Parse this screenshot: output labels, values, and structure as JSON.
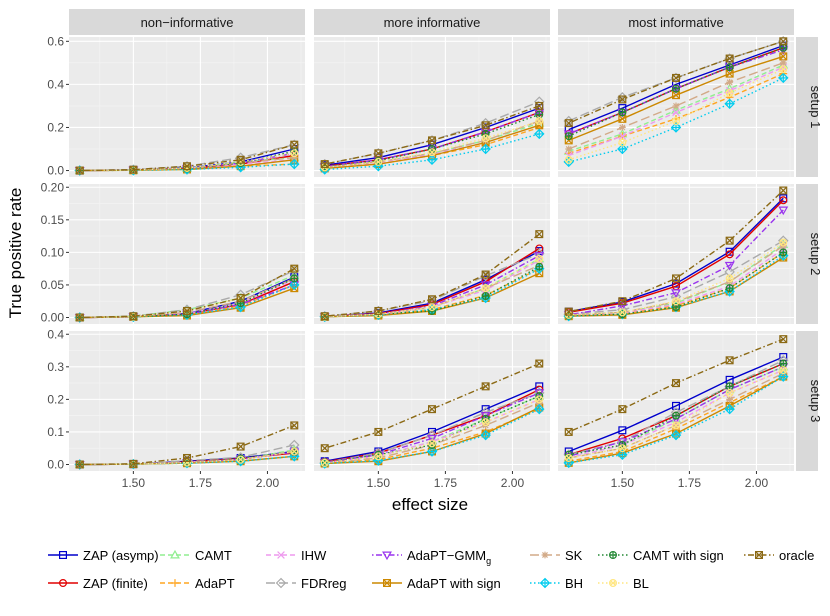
{
  "chart_data": {
    "type": "line",
    "xlabel": "effect size",
    "ylabel": "True positive rate",
    "x": [
      1.3,
      1.5,
      1.7,
      1.9,
      2.1
    ],
    "xticks": [
      "1.50",
      "1.75",
      "2.00"
    ],
    "xtick_values": [
      1.5,
      1.75,
      2.0
    ],
    "xlim": [
      1.26,
      2.14
    ],
    "columns": [
      "non−informative",
      "more informative",
      "most informative"
    ],
    "rows": [
      {
        "label": "setup 1",
        "ylim": [
          -0.03,
          0.62
        ],
        "yticks": [
          0.0,
          0.2,
          0.4,
          0.6
        ],
        "yticklabels": [
          "0.0",
          "0.2",
          "0.4",
          "0.6"
        ]
      },
      {
        "label": "setup 2",
        "ylim": [
          -0.01,
          0.205
        ],
        "yticks": [
          0.0,
          0.05,
          0.1,
          0.15,
          0.2
        ],
        "yticklabels": [
          "0.00",
          "0.05",
          "0.10",
          "0.15",
          "0.20"
        ]
      },
      {
        "label": "setup 3",
        "ylim": [
          -0.02,
          0.41
        ],
        "yticks": [
          0.0,
          0.1,
          0.2,
          0.3,
          0.4
        ],
        "yticklabels": [
          "0.0",
          "0.1",
          "0.2",
          "0.3",
          "0.4"
        ]
      }
    ],
    "series": [
      {
        "name": "ZAP (asymp)",
        "color": "#0000CC",
        "dash": "solid",
        "marker": "square",
        "values": [
          [
            [
              0,
              0.003,
              0.012,
              0.04,
              0.1
            ],
            [
              0.025,
              0.06,
              0.12,
              0.2,
              0.29
            ],
            [
              0.19,
              0.29,
              0.4,
              0.49,
              0.58
            ]
          ],
          [
            [
              0,
              0.001,
              0.006,
              0.025,
              0.062
            ],
            [
              0.001,
              0.007,
              0.022,
              0.058,
              0.102
            ],
            [
              0.009,
              0.024,
              0.052,
              0.101,
              0.183
            ]
          ],
          [
            [
              0,
              0.001,
              0.01,
              0.02,
              0.04
            ],
            [
              0.01,
              0.04,
              0.1,
              0.17,
              0.24
            ],
            [
              0.04,
              0.105,
              0.18,
              0.26,
              0.33
            ]
          ]
        ]
      },
      {
        "name": "ZAP (finite)",
        "color": "#E00000",
        "dash": "solid",
        "marker": "circle",
        "values": [
          [
            [
              0,
              0.002,
              0.01,
              0.03,
              0.07
            ],
            [
              0.02,
              0.05,
              0.1,
              0.18,
              0.27
            ],
            [
              0.17,
              0.27,
              0.38,
              0.48,
              0.57
            ]
          ],
          [
            [
              0,
              0.001,
              0.005,
              0.02,
              0.055
            ],
            [
              0.001,
              0.006,
              0.02,
              0.055,
              0.106
            ],
            [
              0.008,
              0.022,
              0.048,
              0.097,
              0.18
            ]
          ],
          [
            [
              0,
              0.001,
              0.008,
              0.018,
              0.035
            ],
            [
              0.008,
              0.035,
              0.09,
              0.15,
              0.23
            ],
            [
              0.03,
              0.08,
              0.15,
              0.24,
              0.31
            ]
          ]
        ]
      },
      {
        "name": "CAMT",
        "color": "#90EE90",
        "dash": "dashed",
        "marker": "triangle",
        "values": [
          [
            [
              0,
              0.002,
              0.01,
              0.04,
              0.06
            ],
            [
              0.015,
              0.04,
              0.08,
              0.14,
              0.22
            ],
            [
              0.09,
              0.17,
              0.28,
              0.38,
              0.49
            ]
          ],
          [
            [
              0,
              0.002,
              0.012,
              0.03,
              0.065
            ],
            [
              0.001,
              0.005,
              0.015,
              0.045,
              0.09
            ],
            [
              0.004,
              0.008,
              0.022,
              0.055,
              0.112
            ]
          ],
          [
            [
              0,
              0.001,
              0.006,
              0.015,
              0.045
            ],
            [
              0.005,
              0.025,
              0.07,
              0.14,
              0.21
            ],
            [
              0.02,
              0.06,
              0.14,
              0.23,
              0.3
            ]
          ]
        ]
      },
      {
        "name": "AdaPT",
        "color": "#FFA520",
        "dash": "dashed",
        "marker": "plus",
        "values": [
          [
            [
              0,
              0.001,
              0.008,
              0.02,
              0.03
            ],
            [
              0.01,
              0.03,
              0.07,
              0.12,
              0.2
            ],
            [
              0.08,
              0.16,
              0.24,
              0.34,
              0.45
            ]
          ],
          [
            [
              0,
              0.001,
              0.004,
              0.018,
              0.05
            ],
            [
              0.001,
              0.004,
              0.012,
              0.034,
              0.075
            ],
            [
              0.003,
              0.006,
              0.018,
              0.045,
              0.1
            ]
          ],
          [
            [
              0,
              0.001,
              0.005,
              0.01,
              0.025
            ],
            [
              0.004,
              0.015,
              0.05,
              0.1,
              0.17
            ],
            [
              0.01,
              0.04,
              0.11,
              0.19,
              0.27
            ]
          ]
        ]
      },
      {
        "name": "IHW",
        "color": "#EE99EE",
        "dash": "dashed",
        "marker": "cross",
        "values": [
          [
            [
              0,
              0.002,
              0.009,
              0.03,
              0.05
            ],
            [
              0.012,
              0.035,
              0.075,
              0.13,
              0.21
            ],
            [
              0.07,
              0.16,
              0.27,
              0.37,
              0.48
            ]
          ],
          [
            [
              0,
              0.001,
              0.006,
              0.022,
              0.058
            ],
            [
              0.001,
              0.004,
              0.016,
              0.042,
              0.088
            ],
            [
              0.003,
              0.007,
              0.02,
              0.048,
              0.105
            ]
          ],
          [
            [
              0,
              0.001,
              0.007,
              0.016,
              0.04
            ],
            [
              0.006,
              0.025,
              0.07,
              0.13,
              0.2
            ],
            [
              0.02,
              0.06,
              0.13,
              0.22,
              0.29
            ]
          ]
        ]
      },
      {
        "name": "FDRreg",
        "color": "#AAAAAA",
        "dash": "longdash",
        "marker": "diamond",
        "values": [
          [
            [
              0,
              0.004,
              0.02,
              0.06,
              0.12
            ],
            [
              0.03,
              0.08,
              0.14,
              0.22,
              0.32
            ],
            [
              0.23,
              0.34,
              0.43,
              0.52,
              0.6
            ]
          ],
          [
            [
              0,
              0.002,
              0.012,
              0.035,
              0.072
            ],
            [
              0.002,
              0.01,
              0.026,
              0.064,
              0.098
            ],
            [
              0.005,
              0.012,
              0.032,
              0.07,
              0.118
            ]
          ],
          [
            [
              0,
              0.001,
              0.012,
              0.022,
              0.06
            ],
            [
              0.006,
              0.035,
              0.09,
              0.16,
              0.22
            ],
            [
              0.03,
              0.07,
              0.16,
              0.24,
              0.32
            ]
          ]
        ]
      },
      {
        "name": "AdaPT−GMM",
        "sub": "g",
        "color": "#9933EE",
        "dash": "dotdash",
        "marker": "invtriangle",
        "values": [
          [
            [
              0,
              0.002,
              0.01,
              0.035,
              0.08
            ],
            [
              0.018,
              0.05,
              0.1,
              0.18,
              0.27
            ],
            [
              0.17,
              0.27,
              0.38,
              0.48,
              0.56
            ]
          ],
          [
            [
              0,
              0.001,
              0.005,
              0.02,
              0.05
            ],
            [
              0.001,
              0.005,
              0.018,
              0.05,
              0.095
            ],
            [
              0.004,
              0.018,
              0.038,
              0.08,
              0.165
            ]
          ],
          [
            [
              0,
              0.001,
              0.006,
              0.016,
              0.038
            ],
            [
              0.006,
              0.03,
              0.08,
              0.15,
              0.22
            ],
            [
              0.025,
              0.07,
              0.14,
              0.23,
              0.3
            ]
          ]
        ]
      },
      {
        "name": "AdaPT with sign",
        "color": "#CC8800",
        "dash": "solid",
        "marker": "squarecross",
        "values": [
          [
            [
              0,
              0.001,
              0.005,
              0.02,
              0.05
            ],
            [
              0.01,
              0.03,
              0.07,
              0.13,
              0.21
            ],
            [
              0.14,
              0.24,
              0.35,
              0.45,
              0.53
            ]
          ],
          [
            [
              0,
              0.001,
              0.003,
              0.015,
              0.045
            ],
            [
              0.001,
              0.003,
              0.01,
              0.03,
              0.068
            ],
            [
              0.002,
              0.004,
              0.015,
              0.04,
              0.092
            ]
          ],
          [
            [
              0,
              0.001,
              0.004,
              0.01,
              0.025
            ],
            [
              0.003,
              0.01,
              0.04,
              0.095,
              0.175
            ],
            [
              0.005,
              0.035,
              0.095,
              0.18,
              0.27
            ]
          ]
        ]
      },
      {
        "name": "SK",
        "color": "#D2AA88",
        "dash": "longdash",
        "marker": "asterisk",
        "values": [
          [
            [
              0,
              0.002,
              0.01,
              0.035,
              0.06
            ],
            [
              0.015,
              0.04,
              0.08,
              0.14,
              0.23
            ],
            [
              0.1,
              0.2,
              0.3,
              0.41,
              0.5
            ]
          ],
          [
            [
              0,
              0.001,
              0.008,
              0.025,
              0.06
            ],
            [
              0.001,
              0.005,
              0.016,
              0.045,
              0.08
            ],
            [
              0.004,
              0.008,
              0.024,
              0.055,
              0.11
            ]
          ],
          [
            [
              0,
              0.001,
              0.006,
              0.015,
              0.04
            ],
            [
              0.005,
              0.02,
              0.06,
              0.12,
              0.19
            ],
            [
              0.02,
              0.05,
              0.12,
              0.2,
              0.28
            ]
          ]
        ]
      },
      {
        "name": "BH",
        "color": "#00CCEE",
        "dash": "dotted",
        "marker": "diamondplus",
        "values": [
          [
            [
              0,
              0.001,
              0.005,
              0.015,
              0.03
            ],
            [
              0.005,
              0.02,
              0.05,
              0.1,
              0.17
            ],
            [
              0.04,
              0.1,
              0.2,
              0.31,
              0.43
            ]
          ],
          [
            [
              0,
              0.001,
              0.004,
              0.016,
              0.05
            ],
            [
              0.001,
              0.004,
              0.012,
              0.03,
              0.075
            ],
            [
              0.002,
              0.005,
              0.016,
              0.04,
              0.095
            ]
          ],
          [
            [
              0,
              0.001,
              0.004,
              0.01,
              0.025
            ],
            [
              0.003,
              0.012,
              0.04,
              0.09,
              0.17
            ],
            [
              0.005,
              0.03,
              0.09,
              0.17,
              0.27
            ]
          ]
        ]
      },
      {
        "name": "CAMT with sign",
        "color": "#228833",
        "dash": "dotted",
        "marker": "circleplus",
        "values": [
          [
            [
              0,
              0.002,
              0.01,
              0.035,
              0.09
            ],
            [
              0.018,
              0.045,
              0.1,
              0.17,
              0.26
            ],
            [
              0.16,
              0.27,
              0.38,
              0.48,
              0.57
            ]
          ],
          [
            [
              0,
              0.001,
              0.005,
              0.022,
              0.06
            ],
            [
              0.001,
              0.005,
              0.01,
              0.033,
              0.078
            ],
            [
              0.003,
              0.005,
              0.016,
              0.045,
              0.1
            ]
          ],
          [
            [
              0,
              0.001,
              0.006,
              0.018,
              0.04
            ],
            [
              0.006,
              0.03,
              0.06,
              0.14,
              0.21
            ],
            [
              0.03,
              0.06,
              0.15,
              0.24,
              0.31
            ]
          ]
        ]
      },
      {
        "name": "BL",
        "color": "#FFE680",
        "dash": "dotted",
        "marker": "circlecross",
        "values": [
          [
            [
              0,
              0.002,
              0.012,
              0.04,
              0.08
            ],
            [
              0.015,
              0.04,
              0.085,
              0.15,
              0.23
            ],
            [
              0.05,
              0.13,
              0.23,
              0.36,
              0.47
            ]
          ],
          [
            [
              0,
              0.001,
              0.01,
              0.03,
              0.075
            ],
            [
              0.001,
              0.005,
              0.016,
              0.045,
              0.09
            ],
            [
              0.004,
              0.008,
              0.025,
              0.06,
              0.115
            ]
          ],
          [
            [
              0,
              0.001,
              0.006,
              0.015,
              0.04
            ],
            [
              0.005,
              0.025,
              0.065,
              0.13,
              0.2
            ],
            [
              0.02,
              0.05,
              0.12,
              0.22,
              0.29
            ]
          ]
        ]
      },
      {
        "name": "oracle",
        "color": "#8B6914",
        "dash": "dotdash",
        "marker": "squarecross",
        "values": [
          [
            [
              0,
              0.004,
              0.02,
              0.05,
              0.12
            ],
            [
              0.03,
              0.08,
              0.14,
              0.21,
              0.3
            ],
            [
              0.22,
              0.33,
              0.43,
              0.52,
              0.6
            ]
          ],
          [
            [
              0,
              0.002,
              0.01,
              0.03,
              0.075
            ],
            [
              0.002,
              0.01,
              0.028,
              0.066,
              0.128
            ],
            [
              0.009,
              0.025,
              0.06,
              0.118,
              0.195
            ]
          ],
          [
            [
              0,
              0.002,
              0.02,
              0.055,
              0.12
            ],
            [
              0.05,
              0.1,
              0.17,
              0.24,
              0.31
            ],
            [
              0.1,
              0.17,
              0.25,
              0.32,
              0.385
            ]
          ]
        ]
      }
    ]
  }
}
